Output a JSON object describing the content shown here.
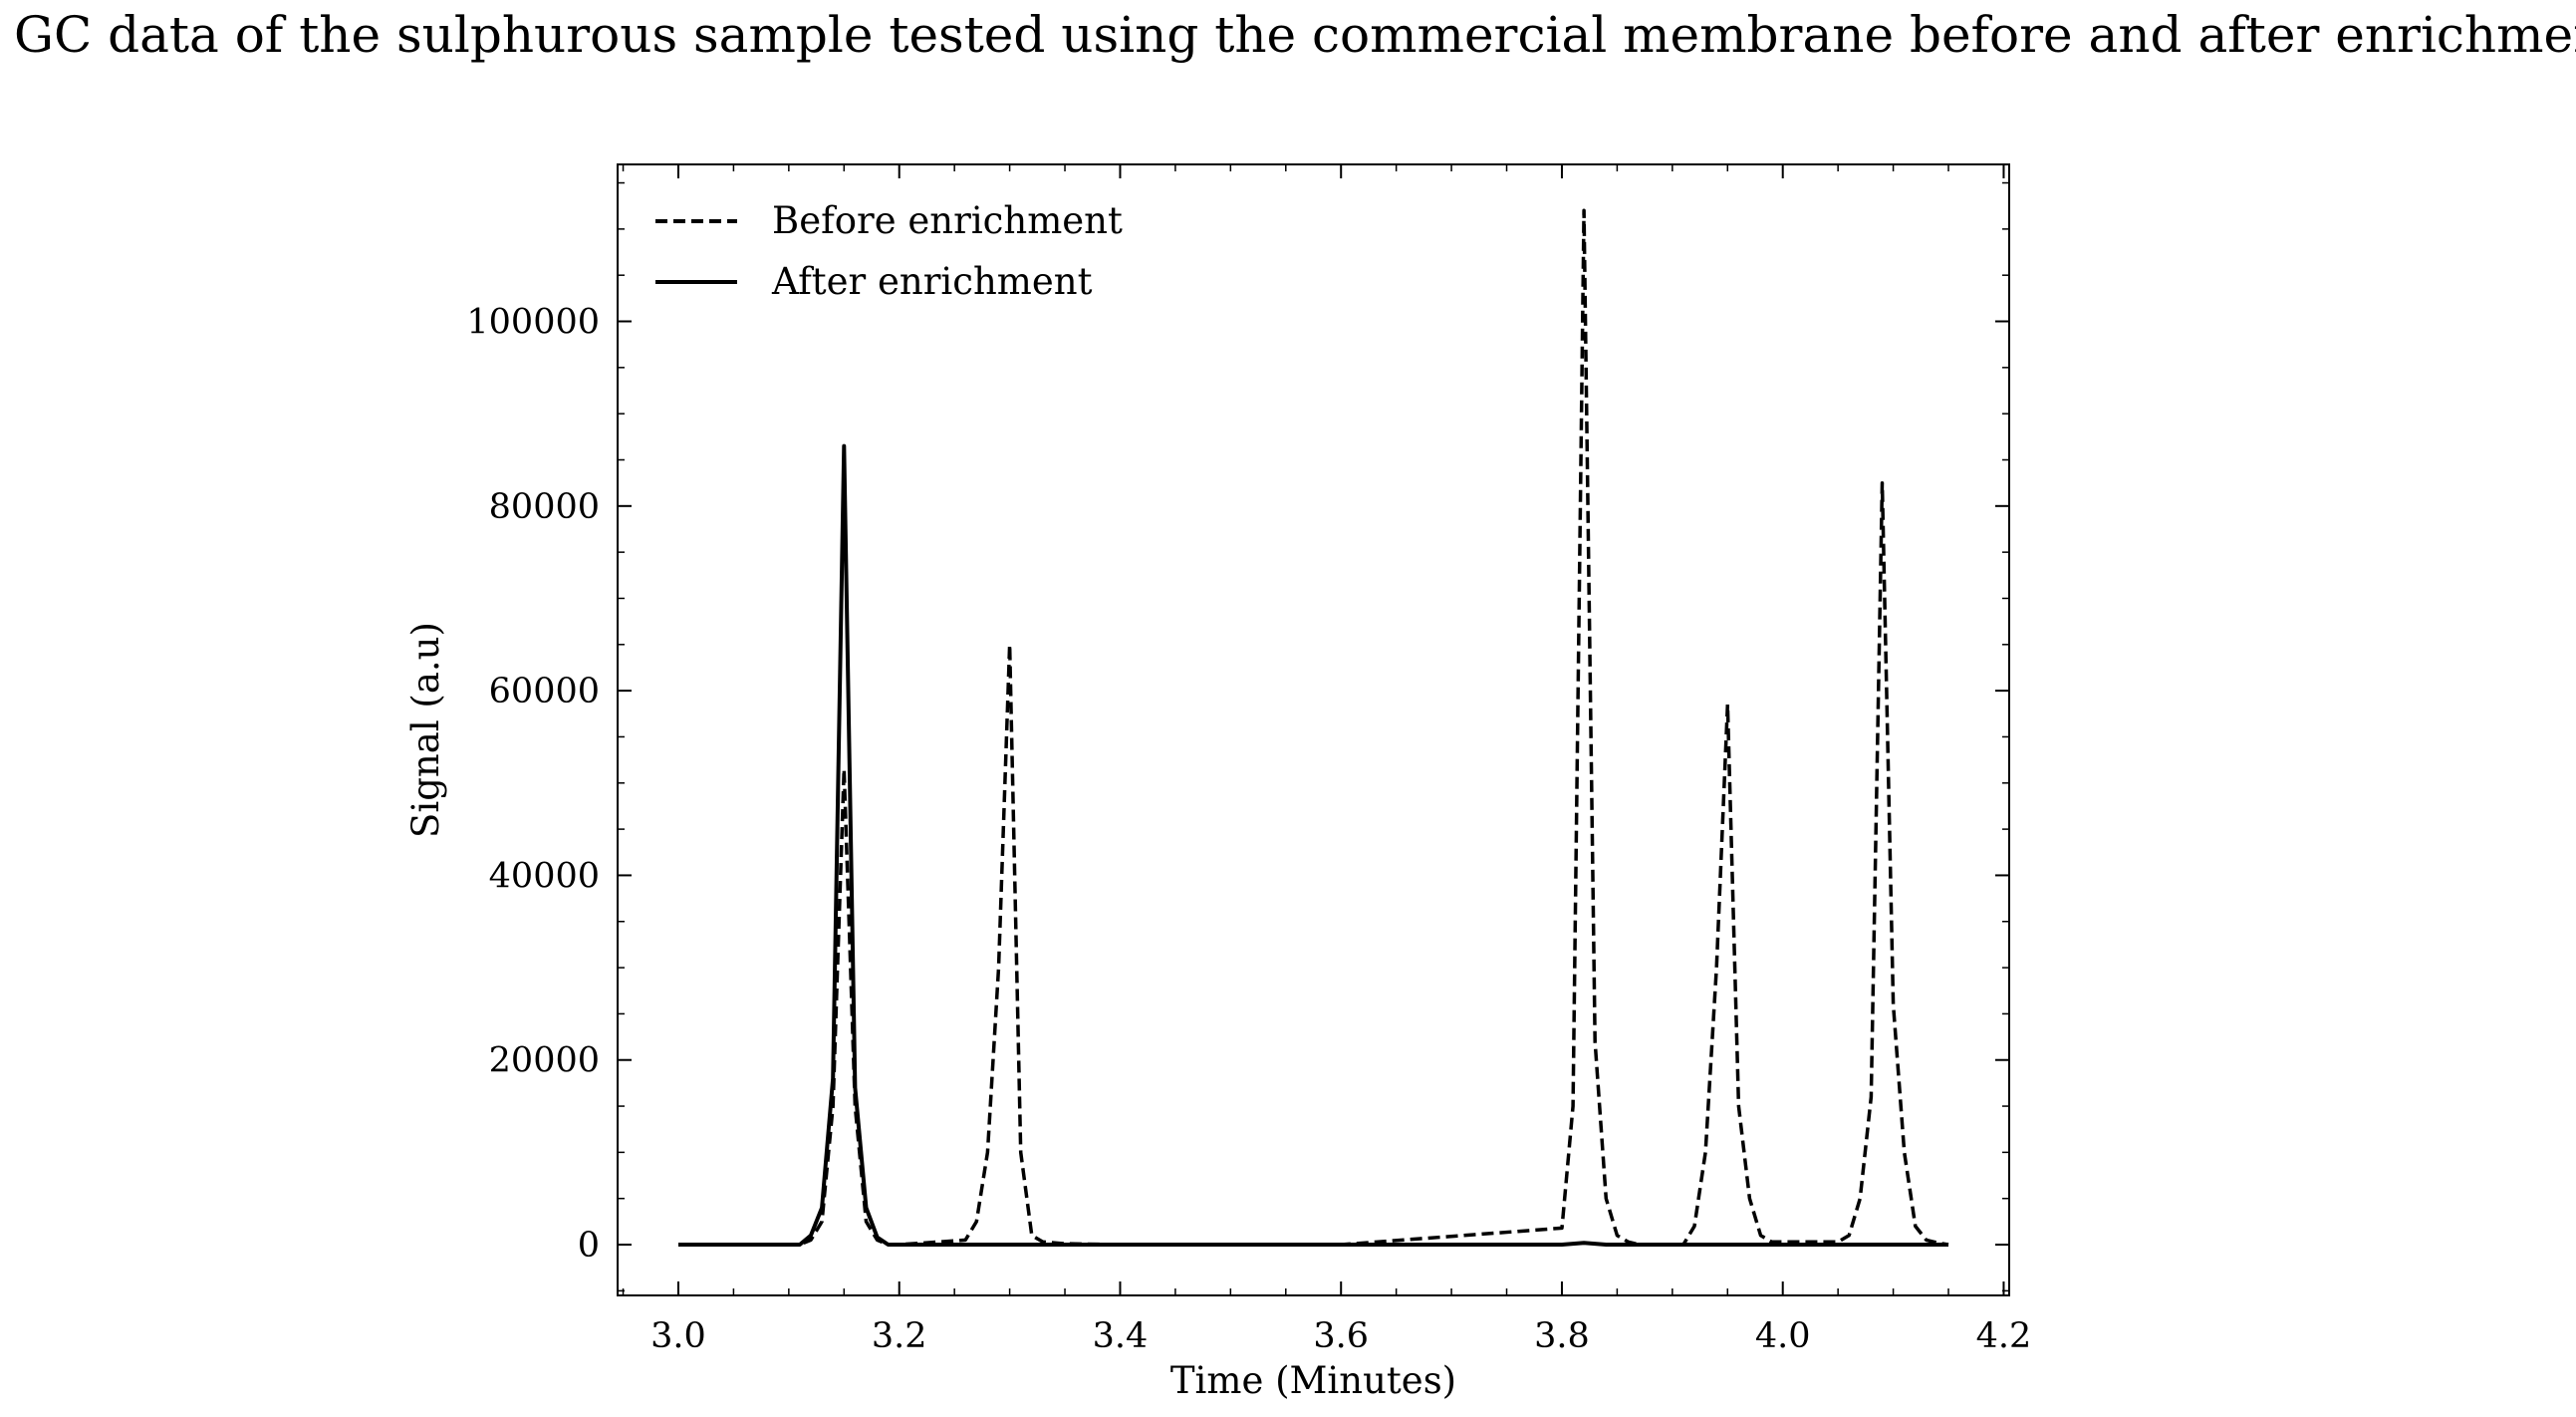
{
  "chart_data": {
    "type": "line",
    "title": "GC data of the sulphurous sample tested using the commercial membrane before and after enrichment",
    "xlabel": "Time (Minutes)",
    "ylabel": "Signal (a.u)",
    "xlim": [
      2.945,
      4.205
    ],
    "ylim": [
      -5500,
      117000
    ],
    "xticks": [
      3.0,
      3.2,
      3.4,
      3.6,
      3.8,
      4.0,
      4.2
    ],
    "xtick_labels": [
      "3.0",
      "3.2",
      "3.4",
      "3.6",
      "3.8",
      "4.0",
      "4.2"
    ],
    "yticks": [
      0,
      20000,
      40000,
      60000,
      80000,
      100000
    ],
    "ytick_labels": [
      "0",
      "20000",
      "40000",
      "60000",
      "80000",
      "100000"
    ],
    "grid": false,
    "legend_position": "top-left",
    "series": [
      {
        "name": "Before enrichment",
        "style": "dashed",
        "color": "#000000",
        "x": [
          3.0,
          3.11,
          3.12,
          3.13,
          3.14,
          3.15,
          3.16,
          3.17,
          3.18,
          3.19,
          3.2,
          3.26,
          3.27,
          3.28,
          3.29,
          3.3,
          3.31,
          3.32,
          3.33,
          3.35,
          3.4,
          3.6,
          3.8,
          3.81,
          3.82,
          3.83,
          3.84,
          3.85,
          3.86,
          3.87,
          3.91,
          3.92,
          3.93,
          3.94,
          3.95,
          3.96,
          3.97,
          3.98,
          3.99,
          4.05,
          4.06,
          4.07,
          4.08,
          4.09,
          4.1,
          4.11,
          4.12,
          4.13,
          4.14,
          4.15
        ],
        "y": [
          0,
          0,
          500,
          2500,
          15000,
          51500,
          15000,
          2500,
          500,
          0,
          0,
          500,
          2500,
          10000,
          30000,
          65000,
          10000,
          1000,
          300,
          100,
          0,
          0,
          1800,
          15000,
          112000,
          22000,
          5000,
          1000,
          300,
          0,
          0,
          2000,
          10000,
          30000,
          58500,
          15000,
          5000,
          1000,
          300,
          300,
          1000,
          5000,
          16000,
          82500,
          26000,
          10000,
          2000,
          500,
          200,
          0
        ]
      },
      {
        "name": "After enrichment",
        "style": "solid",
        "color": "#000000",
        "x": [
          3.0,
          3.11,
          3.12,
          3.13,
          3.14,
          3.15,
          3.16,
          3.17,
          3.18,
          3.19,
          3.2,
          3.3,
          3.4,
          3.6,
          3.8,
          3.82,
          3.84,
          4.0,
          4.15
        ],
        "y": [
          0,
          0,
          1000,
          4000,
          18000,
          86500,
          17000,
          4000,
          800,
          0,
          0,
          0,
          0,
          0,
          0,
          200,
          0,
          0,
          0
        ]
      }
    ]
  }
}
